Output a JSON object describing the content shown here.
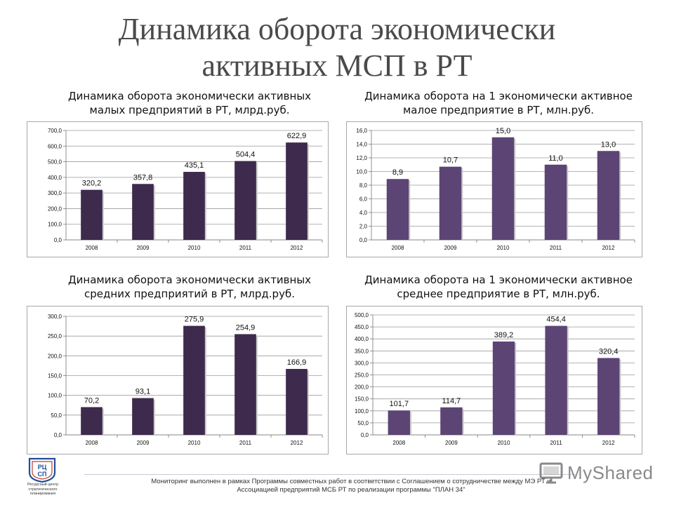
{
  "page": {
    "title_line1": "Динамика оборота экономически",
    "title_line2": "активных МСП в РТ"
  },
  "panels": [
    {
      "title_line1": "Динамика оборота экономически активных",
      "title_line2": "малых предприятий в РТ, млрд.руб."
    },
    {
      "title_line1": "Динамика оборота на 1 экономически активное",
      "title_line2": "малое предприятие в РТ, млн.руб."
    },
    {
      "title_line1": "Динамика оборота экономически активных",
      "title_line2": "средних предприятий в РТ, млрд.руб."
    },
    {
      "title_line1": "Динамика оборота на 1 экономически активное",
      "title_line2": "среднее предприятие в РТ, млн.руб."
    }
  ],
  "chart_data": [
    {
      "type": "bar",
      "categories": [
        "2008",
        "2009",
        "2010",
        "2011",
        "2012"
      ],
      "values": [
        320.2,
        357.8,
        435.1,
        504.4,
        622.9
      ],
      "value_labels": [
        "320,2",
        "357,8",
        "435,1",
        "504,4",
        "622,9"
      ],
      "ylim": [
        0,
        700
      ],
      "y_ticks": [
        "0,0",
        "100,0",
        "200,0",
        "300,0",
        "400,0",
        "500,0",
        "600,0",
        "700,0"
      ],
      "grid": true,
      "bar_color": "#3e2a4c"
    },
    {
      "type": "bar",
      "categories": [
        "2008",
        "2009",
        "2010",
        "2011",
        "2012"
      ],
      "values": [
        8.9,
        10.7,
        15.0,
        11.0,
        13.0
      ],
      "value_labels": [
        "8,9",
        "10,7",
        "15,0",
        "11,0",
        "13,0"
      ],
      "ylim": [
        0,
        16
      ],
      "y_ticks": [
        "0,0",
        "2,0",
        "4,0",
        "6,0",
        "8,0",
        "10,0",
        "12,0",
        "14,0",
        "16,0"
      ],
      "grid": true,
      "bar_color": "#5c4475"
    },
    {
      "type": "bar",
      "categories": [
        "2008",
        "2009",
        "2010",
        "2011",
        "2012"
      ],
      "values": [
        70.2,
        93.1,
        275.9,
        254.9,
        166.9
      ],
      "value_labels": [
        "70,2",
        "93,1",
        "275,9",
        "254,9",
        "166,9"
      ],
      "ylim": [
        0,
        300
      ],
      "y_ticks": [
        "0,0",
        "50,0",
        "100,0",
        "150,0",
        "200,0",
        "250,0",
        "300,0"
      ],
      "grid": true,
      "bar_color": "#3e2a4c"
    },
    {
      "type": "bar",
      "categories": [
        "2008",
        "2009",
        "2010",
        "2011",
        "2012"
      ],
      "values": [
        101.7,
        114.7,
        389.2,
        454.4,
        320.4
      ],
      "value_labels": [
        "101,7",
        "114,7",
        "389,2",
        "454,4",
        "320,4"
      ],
      "ylim": [
        0,
        500
      ],
      "y_ticks": [
        "0,0",
        "50,0",
        "100,0",
        "150,0",
        "200,0",
        "250,0",
        "300,0",
        "350,0",
        "400,0",
        "450,0",
        "500,0"
      ],
      "grid": true,
      "bar_color": "#5c4475"
    }
  ],
  "footer": {
    "line1": "Мониторинг выполнен в рамках Программы совместных работ в соответствии с Соглашением о сотрудничестве между МЭ РТ и",
    "line2": "Ассоциацией предприятий МСБ РТ по реализации программы \"ПЛАН 34\""
  },
  "logo": {
    "mark_text": "РЦ СП",
    "caption": "Ресурсный центр стратегического планирования",
    "color": "#1f4f9a"
  },
  "watermark": {
    "text": "MyShared"
  }
}
